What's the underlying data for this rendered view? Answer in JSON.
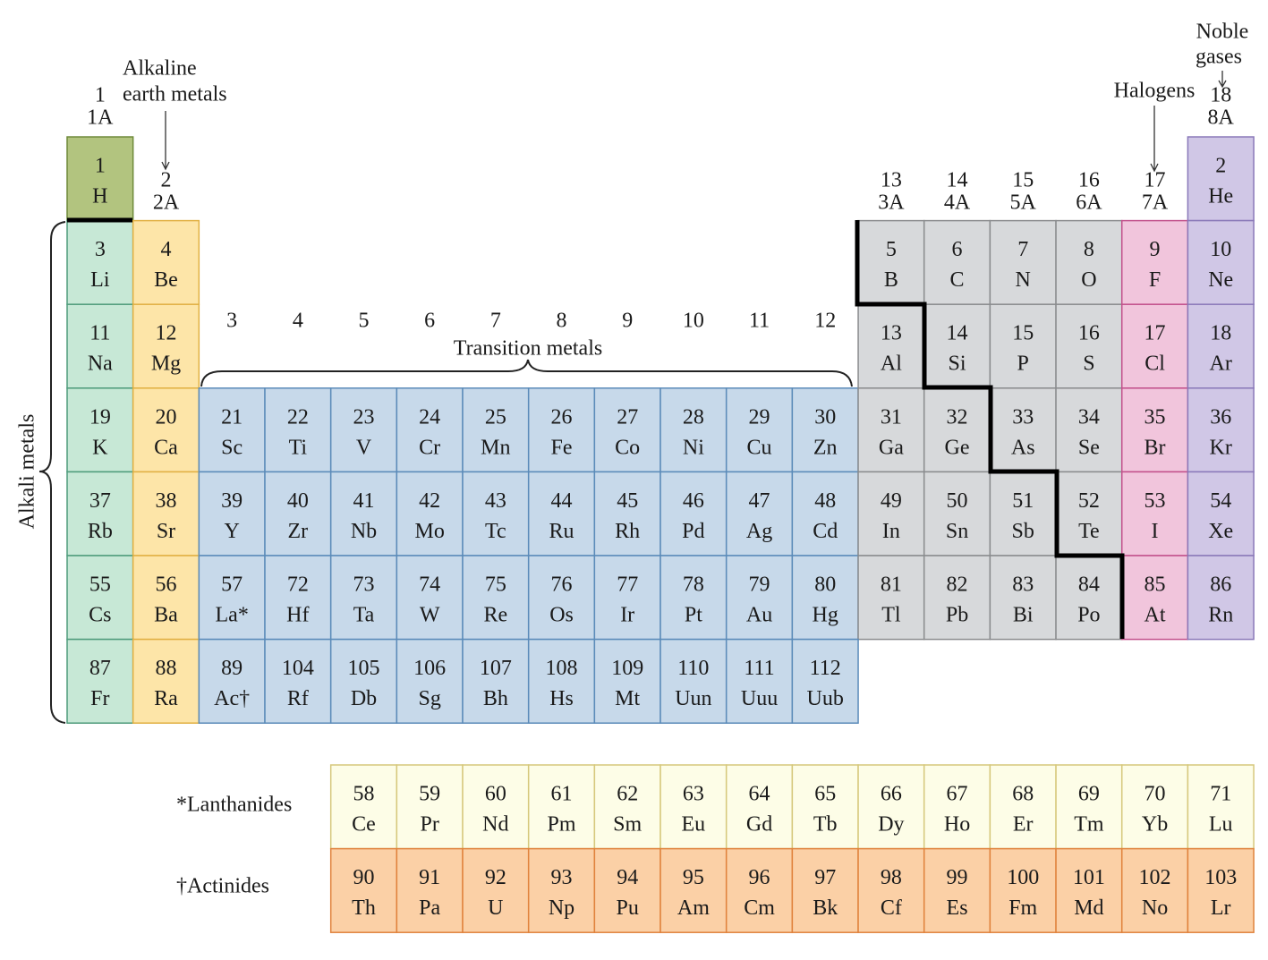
{
  "group_labels": [
    {
      "number": 1,
      "name": "1A"
    },
    {
      "number": 2,
      "name": "2A"
    },
    {
      "number": 3
    },
    {
      "number": 4
    },
    {
      "number": 5
    },
    {
      "number": 6
    },
    {
      "number": 7
    },
    {
      "number": 8
    },
    {
      "number": 9
    },
    {
      "number": 10
    },
    {
      "number": 11
    },
    {
      "number": 12
    },
    {
      "number": 13,
      "name": "3A"
    },
    {
      "number": 14,
      "name": "4A"
    },
    {
      "number": 15,
      "name": "5A"
    },
    {
      "number": 16,
      "name": "6A"
    },
    {
      "number": 17,
      "name": "7A"
    },
    {
      "number": 18,
      "name": "8A"
    }
  ],
  "annotations": {
    "alkaline_earth_metals": [
      "Alkaline",
      "earth metals"
    ],
    "transition_metals": "Transition metals",
    "halogens": "Halogens",
    "noble_gases": [
      "Noble",
      "gases"
    ],
    "alkali_metals": "Alkali metals",
    "lanthanides": "*Lanthanides",
    "actinides": "†Actinides"
  },
  "table": {
    "periods": [
      [
        {
          "number": 1,
          "symbol": "H"
        },
        {
          "number": 2,
          "symbol": "He"
        }
      ],
      [
        {
          "number": 3,
          "symbol": "Li"
        },
        {
          "number": 4,
          "symbol": "Be"
        },
        {
          "number": 5,
          "symbol": "B"
        },
        {
          "number": 6,
          "symbol": "C"
        },
        {
          "number": 7,
          "symbol": "N"
        },
        {
          "number": 8,
          "symbol": "O"
        },
        {
          "number": 9,
          "symbol": "F"
        },
        {
          "number": 10,
          "symbol": "Ne"
        }
      ],
      [
        {
          "number": 11,
          "symbol": "Na"
        },
        {
          "number": 12,
          "symbol": "Mg"
        },
        {
          "number": 13,
          "symbol": "Al"
        },
        {
          "number": 14,
          "symbol": "Si"
        },
        {
          "number": 15,
          "symbol": "P"
        },
        {
          "number": 16,
          "symbol": "S"
        },
        {
          "number": 17,
          "symbol": "Cl"
        },
        {
          "number": 18,
          "symbol": "Ar"
        }
      ],
      [
        {
          "number": 19,
          "symbol": "K"
        },
        {
          "number": 20,
          "symbol": "Ca"
        },
        {
          "number": 21,
          "symbol": "Sc"
        },
        {
          "number": 22,
          "symbol": "Ti"
        },
        {
          "number": 23,
          "symbol": "V"
        },
        {
          "number": 24,
          "symbol": "Cr"
        },
        {
          "number": 25,
          "symbol": "Mn"
        },
        {
          "number": 26,
          "symbol": "Fe"
        },
        {
          "number": 27,
          "symbol": "Co"
        },
        {
          "number": 28,
          "symbol": "Ni"
        },
        {
          "number": 29,
          "symbol": "Cu"
        },
        {
          "number": 30,
          "symbol": "Zn"
        },
        {
          "number": 31,
          "symbol": "Ga"
        },
        {
          "number": 32,
          "symbol": "Ge"
        },
        {
          "number": 33,
          "symbol": "As"
        },
        {
          "number": 34,
          "symbol": "Se"
        },
        {
          "number": 35,
          "symbol": "Br"
        },
        {
          "number": 36,
          "symbol": "Kr"
        }
      ],
      [
        {
          "number": 37,
          "symbol": "Rb"
        },
        {
          "number": 38,
          "symbol": "Sr"
        },
        {
          "number": 39,
          "symbol": "Y"
        },
        {
          "number": 40,
          "symbol": "Zr"
        },
        {
          "number": 41,
          "symbol": "Nb"
        },
        {
          "number": 42,
          "symbol": "Mo"
        },
        {
          "number": 43,
          "symbol": "Tc"
        },
        {
          "number": 44,
          "symbol": "Ru"
        },
        {
          "number": 45,
          "symbol": "Rh"
        },
        {
          "number": 46,
          "symbol": "Pd"
        },
        {
          "number": 47,
          "symbol": "Ag"
        },
        {
          "number": 48,
          "symbol": "Cd"
        },
        {
          "number": 49,
          "symbol": "In"
        },
        {
          "number": 50,
          "symbol": "Sn"
        },
        {
          "number": 51,
          "symbol": "Sb"
        },
        {
          "number": 52,
          "symbol": "Te"
        },
        {
          "number": 53,
          "symbol": "I"
        },
        {
          "number": 54,
          "symbol": "Xe"
        }
      ],
      [
        {
          "number": 55,
          "symbol": "Cs"
        },
        {
          "number": 56,
          "symbol": "Ba"
        },
        {
          "number": 57,
          "symbol": "La*"
        },
        {
          "number": 72,
          "symbol": "Hf"
        },
        {
          "number": 73,
          "symbol": "Ta"
        },
        {
          "number": 74,
          "symbol": "W"
        },
        {
          "number": 75,
          "symbol": "Re"
        },
        {
          "number": 76,
          "symbol": "Os"
        },
        {
          "number": 77,
          "symbol": "Ir"
        },
        {
          "number": 78,
          "symbol": "Pt"
        },
        {
          "number": 79,
          "symbol": "Au"
        },
        {
          "number": 80,
          "symbol": "Hg"
        },
        {
          "number": 81,
          "symbol": "Tl"
        },
        {
          "number": 82,
          "symbol": "Pb"
        },
        {
          "number": 83,
          "symbol": "Bi"
        },
        {
          "number": 84,
          "symbol": "Po"
        },
        {
          "number": 85,
          "symbol": "At"
        },
        {
          "number": 86,
          "symbol": "Rn"
        }
      ],
      [
        {
          "number": 87,
          "symbol": "Fr"
        },
        {
          "number": 88,
          "symbol": "Ra"
        },
        {
          "number": 89,
          "symbol": "Ac†"
        },
        {
          "number": 104,
          "symbol": "Rf"
        },
        {
          "number": 105,
          "symbol": "Db"
        },
        {
          "number": 106,
          "symbol": "Sg"
        },
        {
          "number": 107,
          "symbol": "Bh"
        },
        {
          "number": 108,
          "symbol": "Hs"
        },
        {
          "number": 109,
          "symbol": "Mt"
        },
        {
          "number": 110,
          "symbol": "Uun"
        },
        {
          "number": 111,
          "symbol": "Uuu"
        },
        {
          "number": 112,
          "symbol": "Uub"
        }
      ]
    ],
    "lanthanides": [
      {
        "number": 58,
        "symbol": "Ce"
      },
      {
        "number": 59,
        "symbol": "Pr"
      },
      {
        "number": 60,
        "symbol": "Nd"
      },
      {
        "number": 61,
        "symbol": "Pm"
      },
      {
        "number": 62,
        "symbol": "Sm"
      },
      {
        "number": 63,
        "symbol": "Eu"
      },
      {
        "number": 64,
        "symbol": "Gd"
      },
      {
        "number": 65,
        "symbol": "Tb"
      },
      {
        "number": 66,
        "symbol": "Dy"
      },
      {
        "number": 67,
        "symbol": "Ho"
      },
      {
        "number": 68,
        "symbol": "Er"
      },
      {
        "number": 69,
        "symbol": "Tm"
      },
      {
        "number": 70,
        "symbol": "Yb"
      },
      {
        "number": 71,
        "symbol": "Lu"
      }
    ],
    "actinides": [
      {
        "number": 90,
        "symbol": "Th"
      },
      {
        "number": 91,
        "symbol": "Pa"
      },
      {
        "number": 92,
        "symbol": "U"
      },
      {
        "number": 93,
        "symbol": "Np"
      },
      {
        "number": 94,
        "symbol": "Pu"
      },
      {
        "number": 95,
        "symbol": "Am"
      },
      {
        "number": 96,
        "symbol": "Cm"
      },
      {
        "number": 97,
        "symbol": "Bk"
      },
      {
        "number": 98,
        "symbol": "Cf"
      },
      {
        "number": 99,
        "symbol": "Es"
      },
      {
        "number": 100,
        "symbol": "Fm"
      },
      {
        "number": 101,
        "symbol": "Md"
      },
      {
        "number": 102,
        "symbol": "No"
      },
      {
        "number": 103,
        "symbol": "Lr"
      }
    ]
  }
}
